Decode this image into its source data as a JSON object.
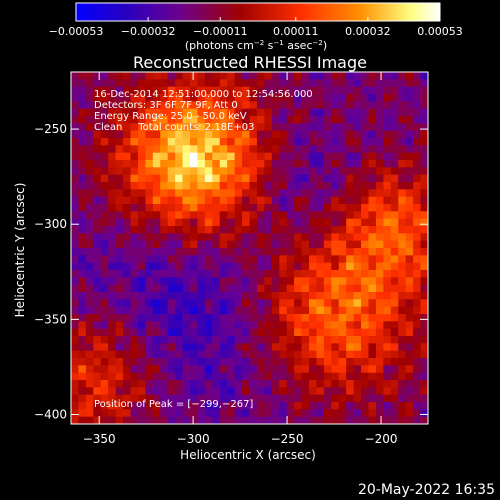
{
  "chart_data": {
    "type": "heatmap",
    "title": "Reconstructed RHESSI Image",
    "xlabel": "Heliocentric X (arcsec)",
    "ylabel": "Heliocentric Y (arcsec)",
    "xlim": [
      -365,
      -175
    ],
    "ylim": [
      -405,
      -220
    ],
    "x_ticks": [
      {
        "value": -350,
        "label": "−350"
      },
      {
        "value": -300,
        "label": "−300"
      },
      {
        "value": -250,
        "label": "−250"
      },
      {
        "value": -200,
        "label": "−200"
      }
    ],
    "y_ticks": [
      {
        "value": -250,
        "label": "−250"
      },
      {
        "value": -300,
        "label": "−300"
      },
      {
        "value": -350,
        "label": "−350"
      },
      {
        "value": -400,
        "label": "−400"
      }
    ],
    "colorbar": {
      "ticks": [
        {
          "value": -0.00053,
          "label": "−0.00053"
        },
        {
          "value": -0.00032,
          "label": "−0.00032"
        },
        {
          "value": -0.00011,
          "label": "−0.00011"
        },
        {
          "value": 0.00011,
          "label": "0.00011"
        },
        {
          "value": 0.00032,
          "label": "0.00032"
        },
        {
          "value": 0.00053,
          "label": "0.00053"
        }
      ],
      "range": [
        -0.00053,
        0.00053
      ],
      "colors": [
        "#0000ff",
        "#2a00c0",
        "#6a0090",
        "#a00000",
        "#ff3000",
        "#ff9000",
        "#ffff80",
        "#ffffff"
      ]
    },
    "peak": [
      -299,
      -267
    ],
    "annotations": [
      "16-Dec-2014 12:51:00.000 to 12:54:56.000",
      "Detectors: 3F 6F 7F 9F, Att 0",
      "Energy Range: 25.0 - 50.0 keV",
      "Clean     Total counts: 2.18E+03",
      "Position of Peak = [−299,−267]"
    ],
    "grid": false
  },
  "colorbar_units": {
    "prefix": "(photons cm",
    "sup1": "−2",
    "mid1": " s",
    "sup2": "−1",
    "mid2": " asec",
    "sup3": "−2",
    "suffix": ")"
  },
  "footer_date": "20-May-2022 16:35"
}
